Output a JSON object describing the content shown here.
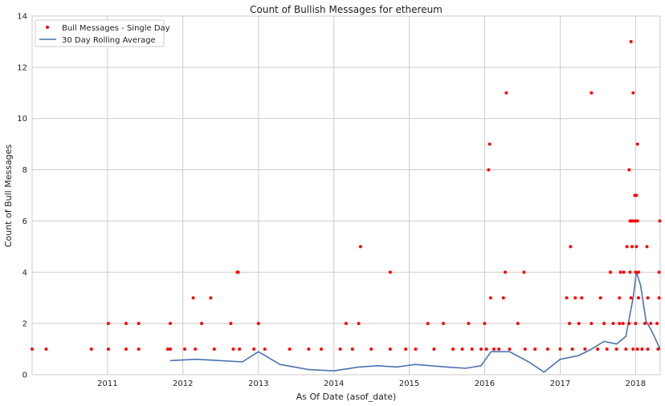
{
  "chart_data": {
    "type": "scatter",
    "title": "Count of Bullish Messages for ethereum",
    "xlabel": "As Of Date (asof_date)",
    "ylabel": "Count of Bull Messages",
    "xlim": [
      "2010-01-01",
      "2018-04-30"
    ],
    "ylim": [
      0,
      14
    ],
    "x_ticks": [
      "2011",
      "2012",
      "2013",
      "2014",
      "2015",
      "2016",
      "2017",
      "2018"
    ],
    "y_ticks": [
      "0",
      "2",
      "4",
      "6",
      "8",
      "10",
      "12",
      "14"
    ],
    "grid": true,
    "legend_position": "top-left",
    "colors": {
      "points": "#ff0000",
      "line": "#4c72b0",
      "grid": "#cccccc",
      "background": "#ffffff"
    },
    "series": [
      {
        "name": "Bull Messages - Single Day",
        "marker": "point",
        "x": [
          "2010-01-01",
          "2010-03-10",
          "2010-10-15",
          "2011-01-05",
          "2011-04-01",
          "2011-06-01",
          "2011-10-20",
          "2011-11-01",
          "2012-01-10",
          "2012-03-01",
          "2012-06-01",
          "2012-09-01",
          "2012-10-01",
          "2012-12-10",
          "2013-02-01",
          "2013-06-01",
          "2013-09-01",
          "2013-11-01",
          "2014-02-01",
          "2014-04-01",
          "2014-07-01",
          "2014-10-01",
          "2014-12-15",
          "2015-02-01",
          "2015-05-01",
          "2015-08-01",
          "2015-09-15",
          "2015-11-01",
          "2015-12-15",
          "2016-01-10",
          "2016-02-15",
          "2016-03-10",
          "2016-05-01",
          "2016-07-15",
          "2016-09-01",
          "2016-11-01",
          "2017-01-01",
          "2017-03-01",
          "2017-05-01",
          "2017-07-01",
          "2017-08-15",
          "2017-10-01",
          "2017-11-15",
          "2017-12-20",
          "2018-01-10",
          "2018-02-01",
          "2018-03-01",
          "2018-04-20",
          "2011-01-05",
          "2011-04-01",
          "2011-06-01",
          "2011-11-01",
          "2012-04-01",
          "2012-08-20",
          "2013-01-01",
          "2014-03-01",
          "2014-05-01",
          "2015-04-01",
          "2015-06-15",
          "2015-10-15",
          "2016-01-01",
          "2016-06-10",
          "2017-02-15",
          "2017-04-01",
          "2017-06-01",
          "2017-08-01",
          "2017-09-15",
          "2017-10-15",
          "2017-11-01",
          "2017-12-01",
          "2018-01-01",
          "2018-02-15",
          "2018-03-15",
          "2018-04-15",
          "2012-02-20",
          "2012-05-15",
          "2016-01-30",
          "2016-04-01",
          "2017-02-01",
          "2017-03-15",
          "2017-04-15",
          "2017-07-15",
          "2017-10-15",
          "2017-12-10",
          "2018-01-15",
          "2018-03-01",
          "2018-04-25",
          "2012-09-20",
          "2012-09-25",
          "2014-10-01",
          "2016-04-10",
          "2016-07-10",
          "2017-09-01",
          "2017-10-20",
          "2017-11-05",
          "2017-12-05",
          "2018-01-01",
          "2018-01-15",
          "2018-04-25",
          "2014-05-10",
          "2017-02-20",
          "2017-11-20",
          "2017-12-15",
          "2018-01-05",
          "2018-02-25",
          "2017-12-05",
          "2017-12-12",
          "2017-12-20",
          "2018-01-01",
          "2018-01-10",
          "2018-04-28",
          "2017-12-28",
          "2018-01-05",
          "2016-01-20",
          "2017-12-01",
          "2016-01-25",
          "2018-01-10",
          "2016-04-15",
          "2017-06-01",
          "2017-12-20",
          "2017-12-10"
        ],
        "y": [
          1,
          1,
          1,
          1,
          1,
          1,
          1,
          1,
          1,
          1,
          1,
          1,
          1,
          1,
          1,
          1,
          1,
          1,
          1,
          1,
          1,
          1,
          1,
          1,
          1,
          1,
          1,
          1,
          1,
          1,
          1,
          1,
          1,
          1,
          1,
          1,
          1,
          1,
          1,
          1,
          1,
          1,
          1,
          1,
          1,
          1,
          1,
          1,
          2,
          2,
          2,
          2,
          2,
          2,
          2,
          2,
          2,
          2,
          2,
          2,
          2,
          2,
          2,
          2,
          2,
          2,
          2,
          2,
          2,
          2,
          2,
          2,
          2,
          2,
          3,
          3,
          3,
          3,
          3,
          3,
          3,
          3,
          3,
          3,
          3,
          3,
          3,
          4,
          4,
          4,
          4,
          4,
          4,
          4,
          4,
          4,
          4,
          4,
          4,
          5,
          5,
          5,
          5,
          5,
          5,
          6,
          6,
          6,
          6,
          6,
          6,
          7,
          7,
          8,
          8,
          9,
          9,
          11,
          11,
          11,
          13
        ]
      },
      {
        "name": "30 Day Rolling Average",
        "marker": "line",
        "x": [
          "2011-11-01",
          "2012-03-01",
          "2012-07-01",
          "2012-10-15",
          "2013-01-01",
          "2013-04-15",
          "2013-09-01",
          "2014-01-01",
          "2014-05-01",
          "2014-08-01",
          "2014-11-01",
          "2015-02-01",
          "2015-04-15",
          "2015-07-01",
          "2015-10-01",
          "2015-12-15",
          "2016-02-01",
          "2016-05-01",
          "2016-08-01",
          "2016-10-15",
          "2017-01-01",
          "2017-04-01",
          "2017-06-01",
          "2017-08-01",
          "2017-10-01",
          "2017-11-15",
          "2017-12-20",
          "2018-01-05",
          "2018-01-25",
          "2018-02-20",
          "2018-03-20",
          "2018-04-30"
        ],
        "y": [
          0.55,
          0.6,
          0.55,
          0.5,
          0.9,
          0.4,
          0.2,
          0.15,
          0.3,
          0.35,
          0.3,
          0.4,
          0.35,
          0.3,
          0.25,
          0.35,
          0.9,
          0.9,
          0.5,
          0.1,
          0.6,
          0.75,
          1.0,
          1.3,
          1.2,
          1.5,
          3.0,
          4.0,
          3.5,
          2.1,
          1.7,
          1.0
        ]
      }
    ]
  }
}
